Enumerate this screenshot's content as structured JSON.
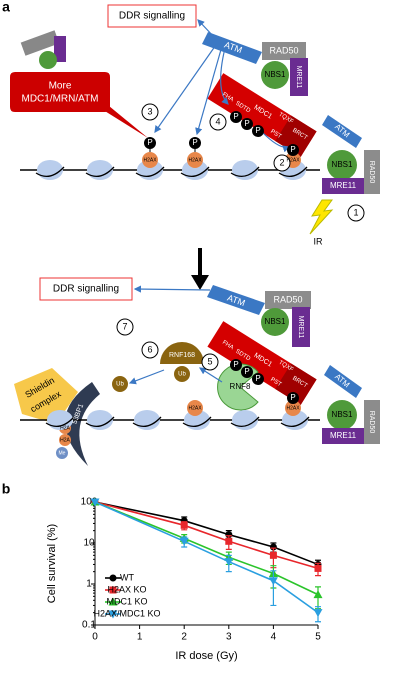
{
  "panel_a": {
    "texts": [
      "a",
      "DDR signalling",
      "More",
      "MDC1/MRN/ATM",
      "ATM",
      "RAD50",
      "NBS1",
      "MRE11",
      "FHA",
      "TQXF",
      "SDTD",
      "MDC1",
      "PST",
      "BRCT",
      "ATM",
      "NBS1",
      "MRE11",
      "RAD50",
      "IR",
      "3",
      "4",
      "2",
      "1",
      "H2AX",
      "H2AX",
      "H2AX",
      "P",
      "P",
      "P",
      "P",
      "P",
      "P",
      "DDR signalling",
      "ATM",
      "RAD50",
      "NBS1",
      "MRE11",
      "FHA",
      "TQXF",
      "SDTD",
      "MDC1",
      "PST",
      "BRCT",
      "RNF8",
      "RNF168",
      "Ub",
      "Ub",
      "Shieldin",
      "complex",
      "53BP1",
      "H2A",
      "H2A",
      "Me",
      "H2AX",
      "H2AX",
      "ATM",
      "NBS1",
      "MRE11",
      "RAD50",
      "5",
      "6",
      "7",
      "P",
      "P",
      "P",
      "P"
    ]
  },
  "chart_data": {
    "type": "line",
    "panel_label": "b",
    "x_label": "IR dose (Gy)",
    "y_label": "Cell survival (%)",
    "log_y": true,
    "x": [
      0,
      2,
      3,
      4,
      5
    ],
    "xlim": [
      0,
      5
    ],
    "xticks": [
      0,
      1,
      2,
      3,
      4,
      5
    ],
    "ylim": [
      0.1,
      100
    ],
    "yticks": [
      0.1,
      1,
      10,
      100
    ],
    "legend": "lower-left",
    "series": [
      {
        "name": "WT",
        "color": "#000000",
        "marker": "circle",
        "values": [
          100,
          35,
          16,
          8,
          3
        ],
        "errors": [
          0,
          8,
          4,
          2,
          0.8
        ]
      },
      {
        "name": "H2AX KO",
        "color": "#e8262b",
        "marker": "square",
        "values": [
          100,
          27,
          11,
          5,
          2.4
        ],
        "errors": [
          0,
          6,
          4,
          2.5,
          0.8
        ]
      },
      {
        "name": "MDC1 KO",
        "color": "#2bc42b",
        "marker": "triangle-up",
        "values": [
          100,
          13,
          4.5,
          1.8,
          0.55
        ],
        "errors": [
          0,
          3,
          1.5,
          1,
          0.3
        ]
      },
      {
        "name": "H2AX/MDC1 KO",
        "color": "#2a9fe0",
        "marker": "triangle-down",
        "values": [
          100,
          11,
          3.5,
          1.2,
          0.2
        ],
        "errors": [
          0,
          3,
          1.5,
          0.9,
          0.08
        ]
      }
    ]
  }
}
